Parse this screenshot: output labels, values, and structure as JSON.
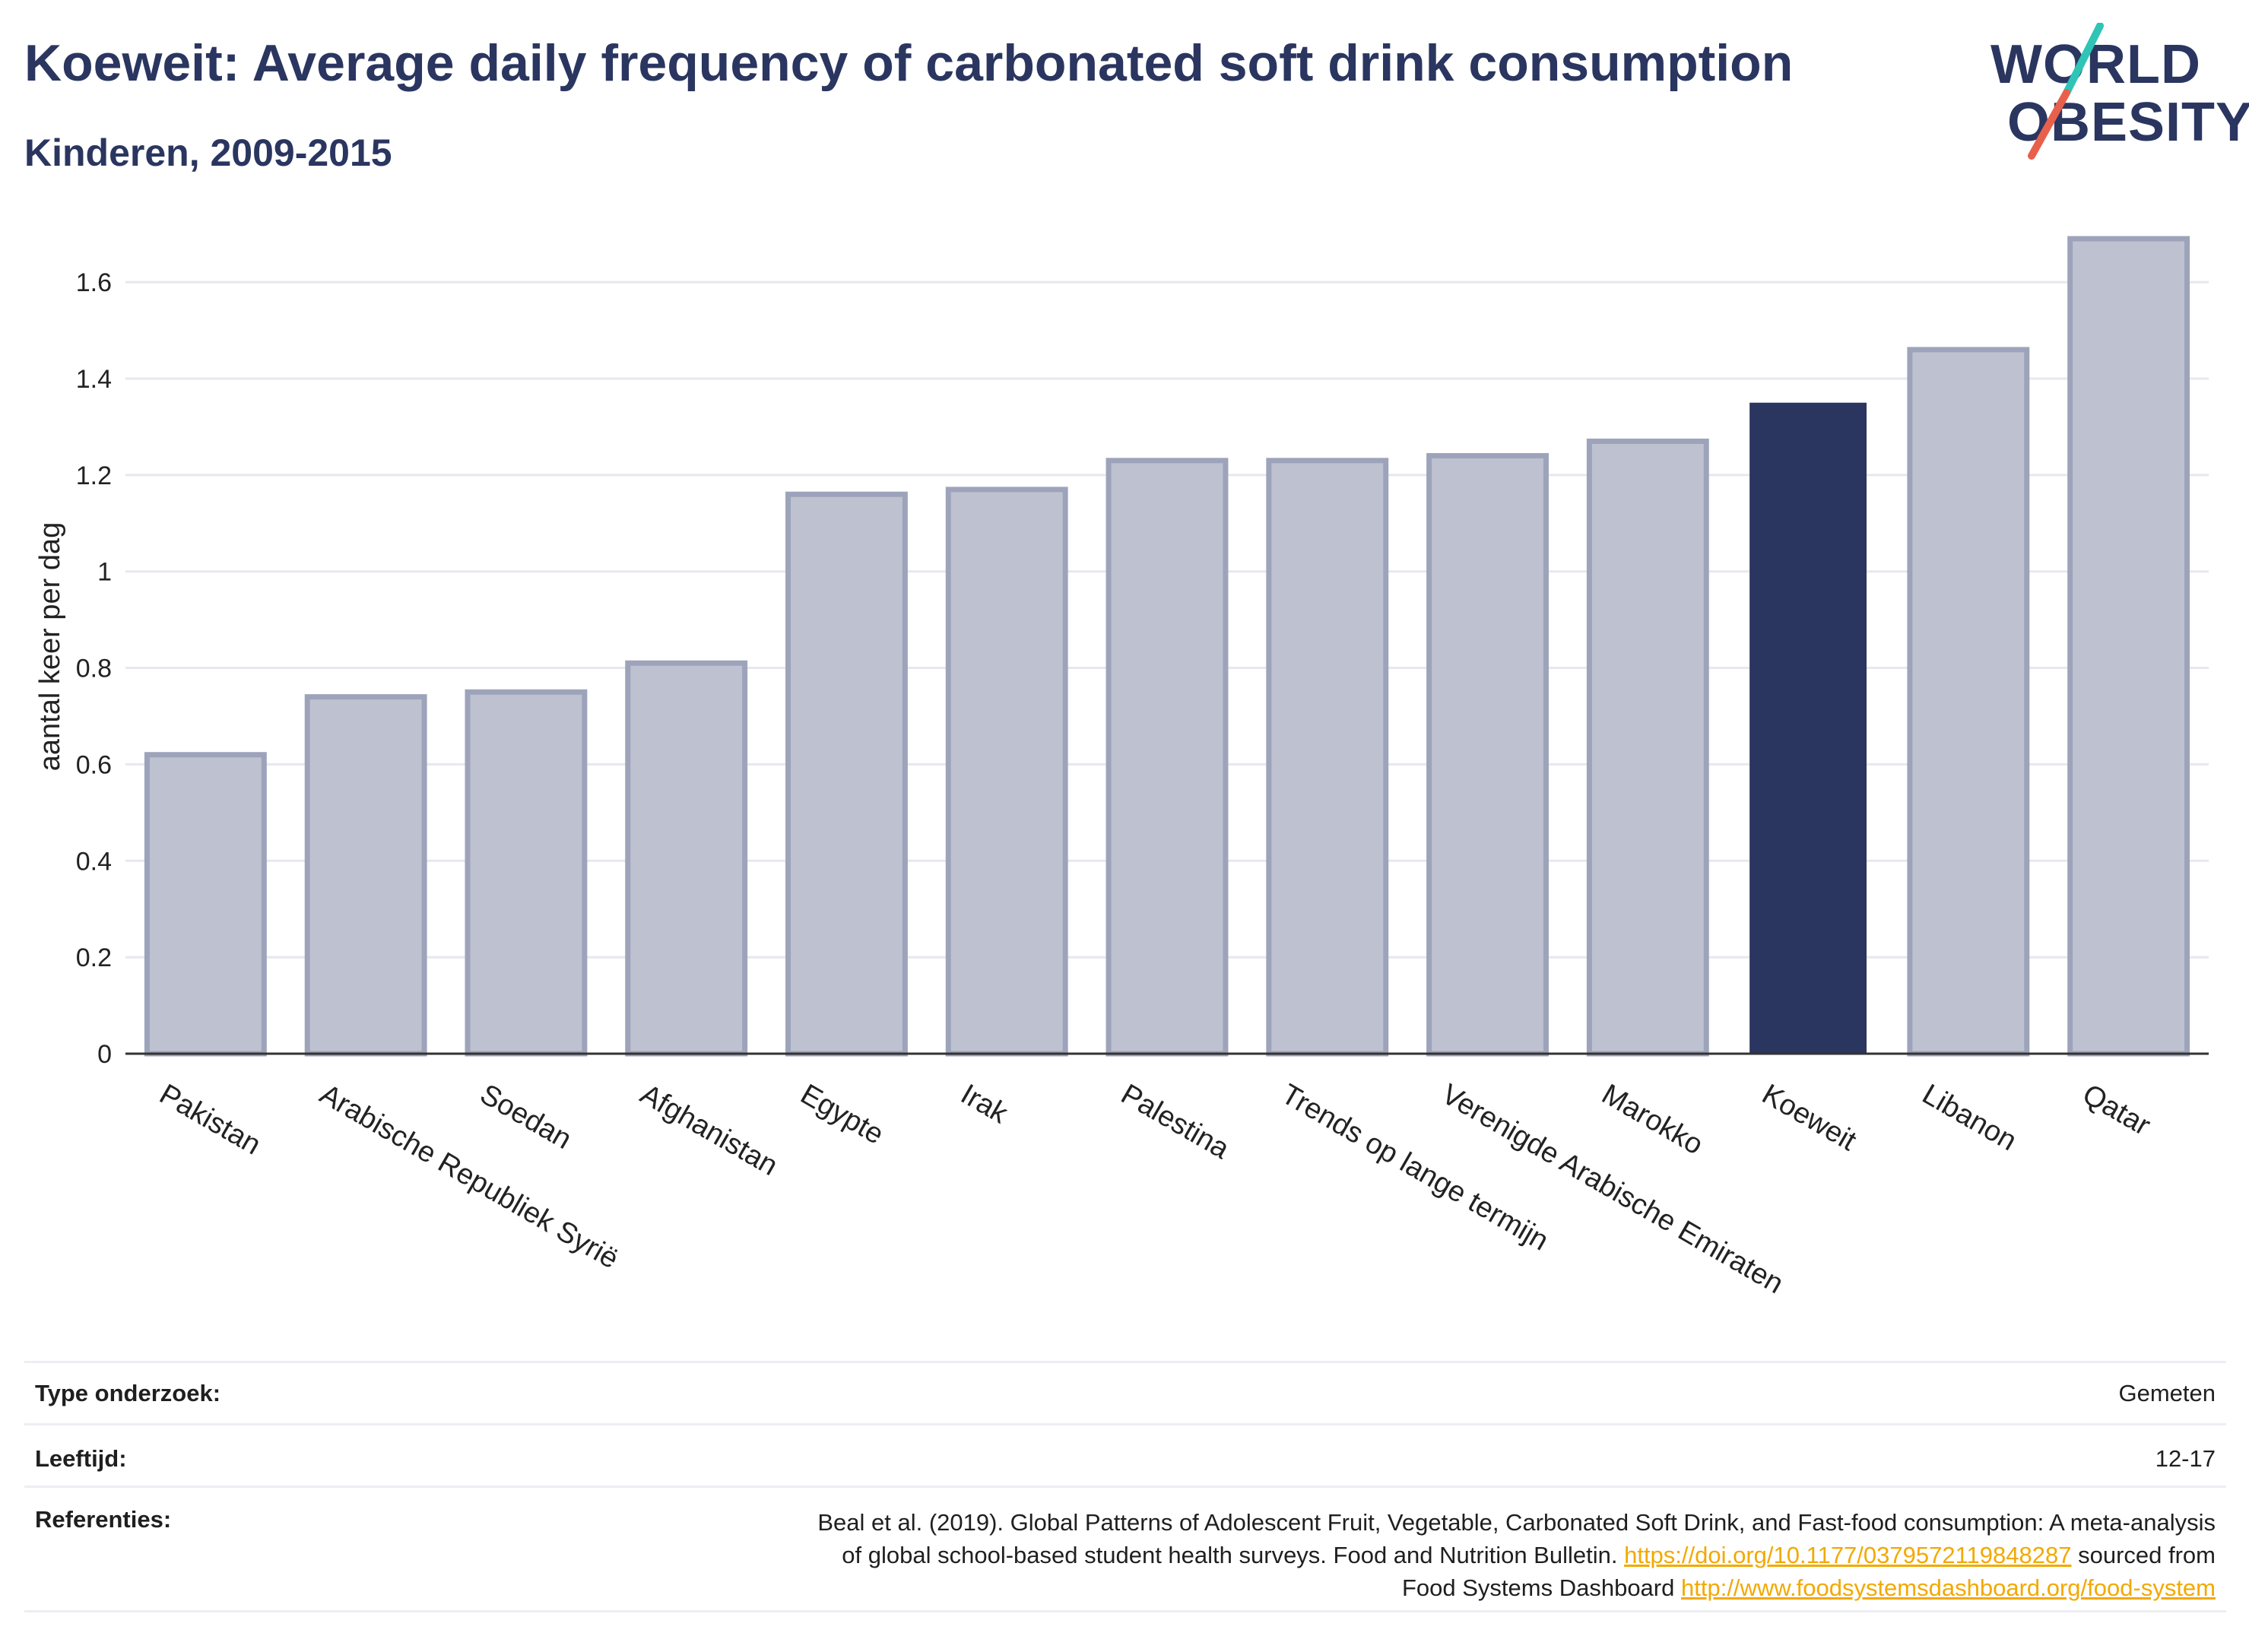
{
  "header": {
    "title": "Koeweit: Average daily frequency of carbonated soft drink consumption",
    "subtitle": "Kinderen, 2009-2015"
  },
  "logo": {
    "line1": "WORLD",
    "line2": "OBESITY"
  },
  "colors": {
    "highlight": "#2a3660",
    "bar": "#bec2d0",
    "bar_border": "#9da3ba",
    "link": "#f2a900"
  },
  "chart_data": {
    "type": "bar",
    "ylabel": "aantal keer per dag",
    "ylim": [
      0,
      1.72
    ],
    "yticks": [
      0,
      0.2,
      0.4,
      0.6,
      0.8,
      1,
      1.2,
      1.4,
      1.6
    ],
    "ytick_labels": [
      "0",
      "0.2",
      "0.4",
      "0.6",
      "0.8",
      "1",
      "1.2",
      "1.4",
      "1.6"
    ],
    "grid": true,
    "categories": [
      "Pakistan",
      "Arabische Republiek Syrië",
      "Soedan",
      "Afghanistan",
      "Egypte",
      "Irak",
      "Palestina",
      "Trends op lange termijn",
      "Verenigde Arabische Emiraten",
      "Marokko",
      "Koeweit",
      "Libanon",
      "Qatar"
    ],
    "values": [
      0.62,
      0.74,
      0.75,
      0.81,
      1.16,
      1.17,
      1.23,
      1.23,
      1.24,
      1.27,
      1.35,
      1.46,
      1.69
    ],
    "highlight": "Koeweit"
  },
  "meta": {
    "type_label": "Type onderzoek:",
    "type_value": "Gemeten",
    "age_label": "Leeftijd:",
    "age_value": "12-17",
    "ref_label": "Referenties:",
    "ref_line1": "Beal et al. (2019). Global Patterns of Adolescent Fruit, Vegetable, Carbonated Soft Drink, and Fast-food consumption: A meta-analysis",
    "ref_line2_pre": "of global school-based student health surveys. Food and Nutrition Bulletin.",
    "ref_line2_link": "https://doi.org/10.1177/0379572119848287",
    "ref_line2_post": "sourced from",
    "ref_line3_pre": "Food Systems Dashboard",
    "ref_line3_link": "http://www.foodsystemsdashboard.org/food-system"
  }
}
